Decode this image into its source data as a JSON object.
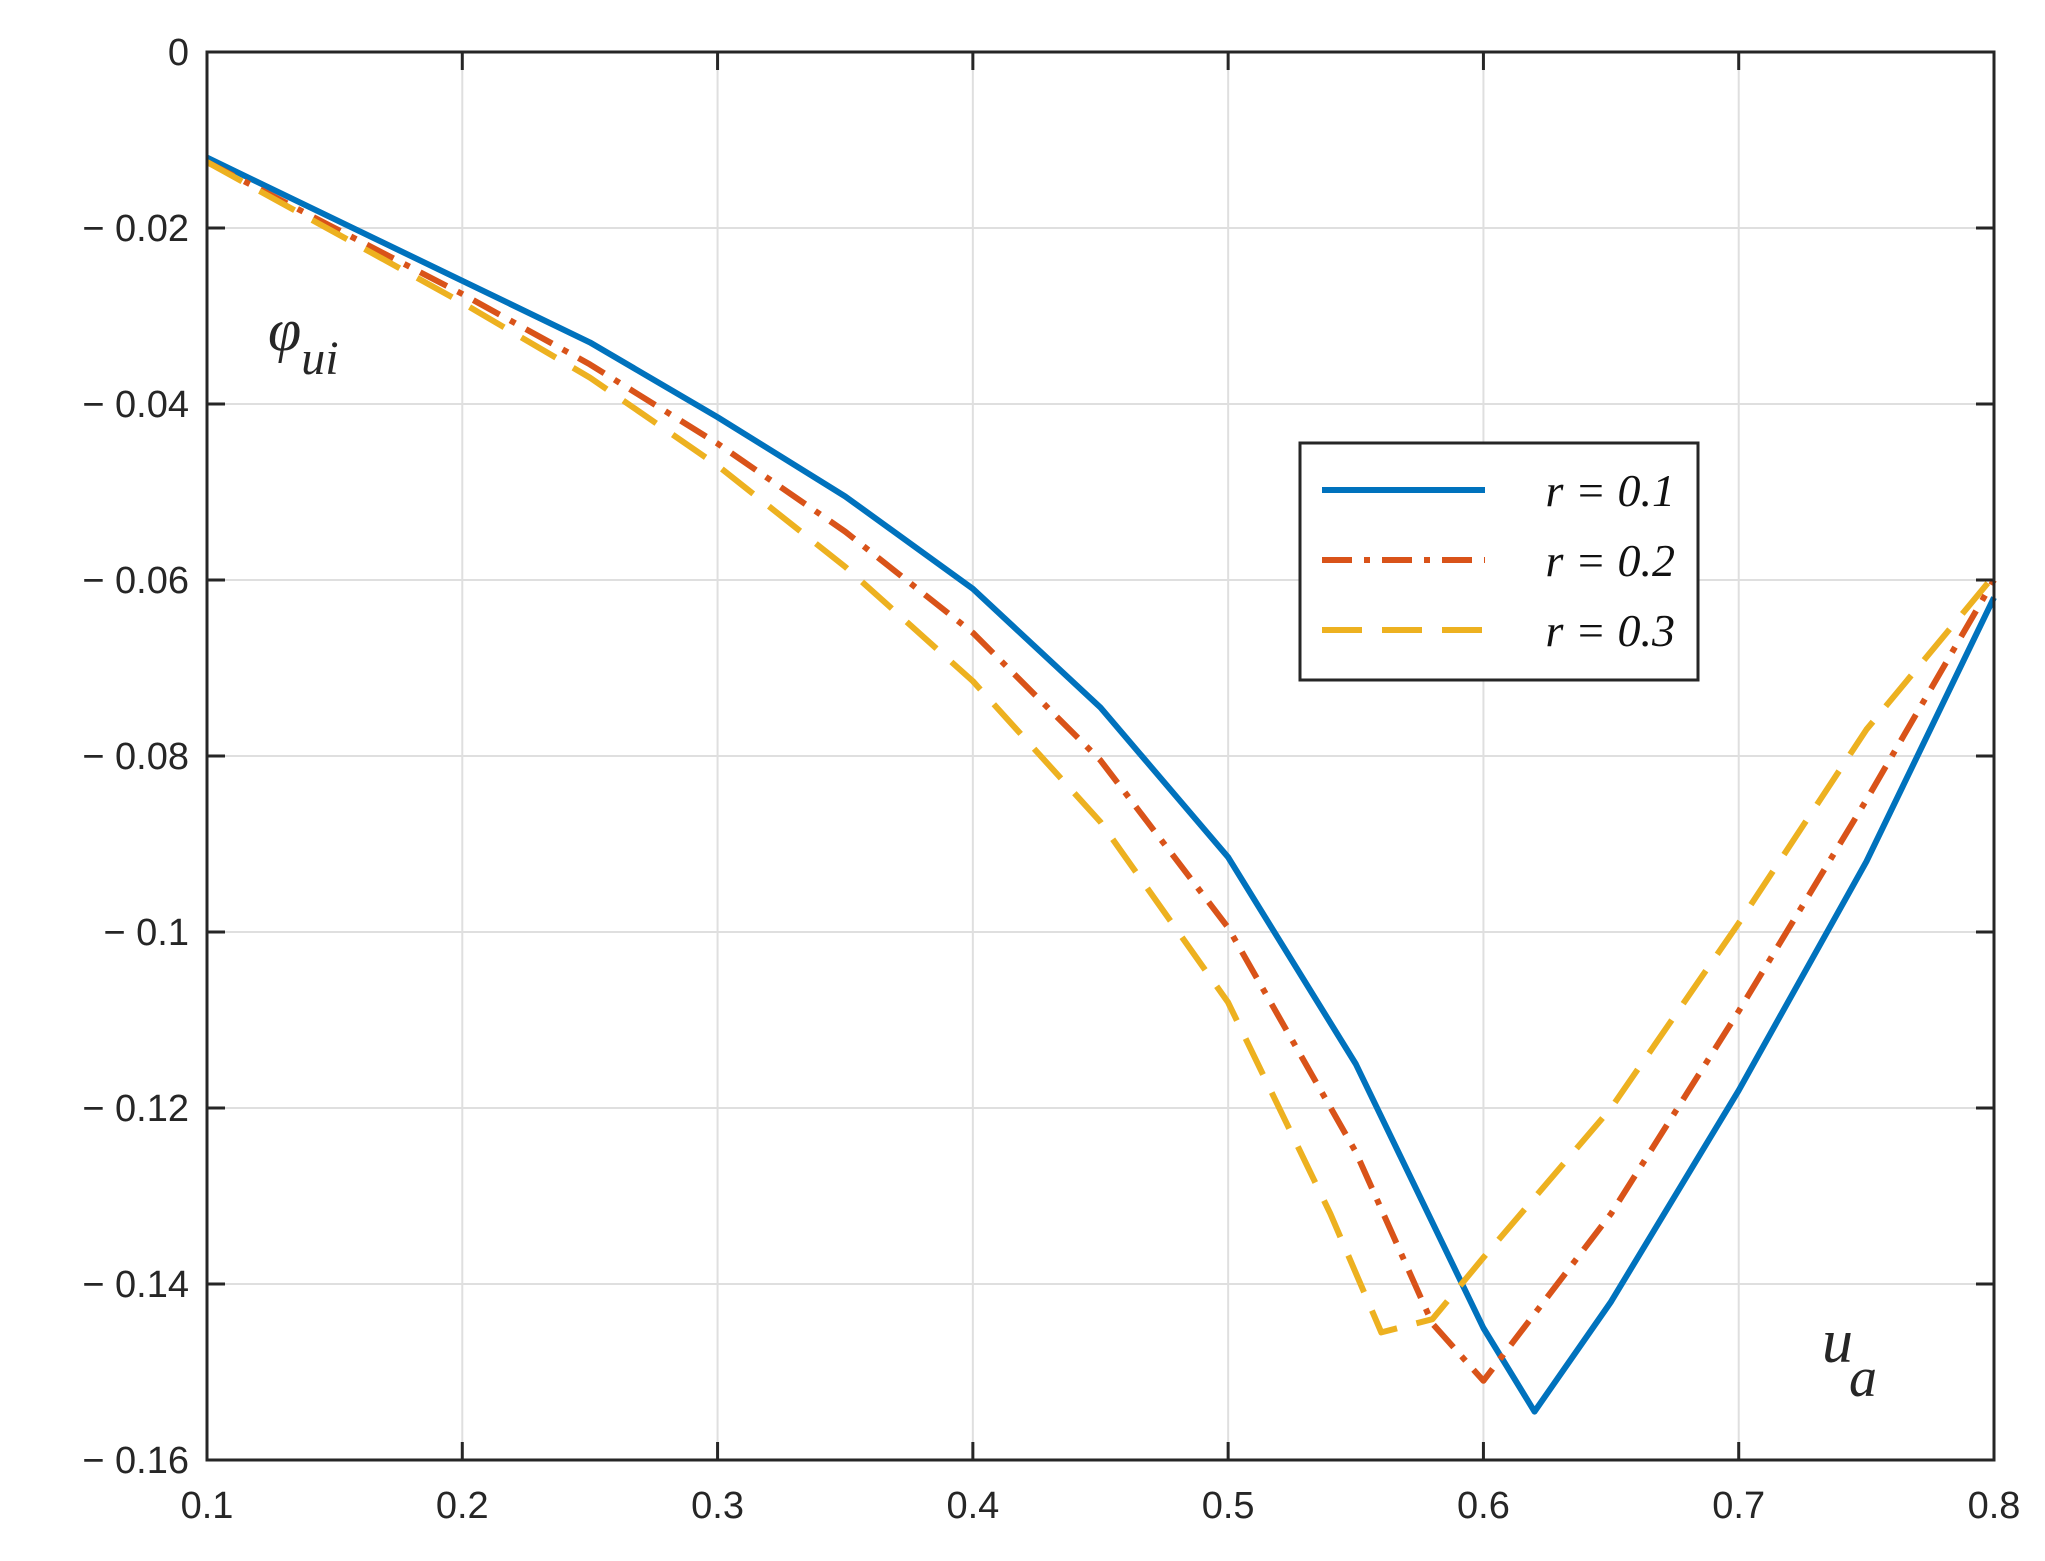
{
  "chart_data": {
    "type": "line",
    "title": "",
    "xlabel": "u",
    "xlabel_sub": "a",
    "ylabel": "φ",
    "ylabel_sub": "ui",
    "xlim": [
      0.1,
      0.8
    ],
    "ylim": [
      -0.16,
      0
    ],
    "xticks": [
      0.1,
      0.2,
      0.3,
      0.4,
      0.5,
      0.6,
      0.7,
      0.8
    ],
    "xtick_labels": [
      "0.1",
      "0.2",
      "0.3",
      "0.4",
      "0.5",
      "0.6",
      "0.7",
      "0.8"
    ],
    "yticks": [
      0,
      -0.02,
      -0.04,
      -0.06,
      -0.08,
      -0.1,
      -0.12,
      -0.14,
      -0.16
    ],
    "ytick_labels": [
      "0",
      "− 0.02",
      "− 0.04",
      "− 0.06",
      "− 0.08",
      "− 0.1",
      "− 0.12",
      "− 0.14",
      "− 0.16"
    ],
    "grid": true,
    "legend_position": "center-right",
    "series": [
      {
        "name": "r = 0.1",
        "color": "#0072BD",
        "style": "solid",
        "x": [
          0.1,
          0.15,
          0.2,
          0.25,
          0.3,
          0.35,
          0.4,
          0.45,
          0.5,
          0.55,
          0.6,
          0.62,
          0.65,
          0.7,
          0.75,
          0.8
        ],
        "y": [
          -0.012,
          -0.019,
          -0.026,
          -0.033,
          -0.0415,
          -0.0505,
          -0.061,
          -0.0745,
          -0.0915,
          -0.115,
          -0.145,
          -0.1545,
          -0.142,
          -0.118,
          -0.092,
          -0.062
        ]
      },
      {
        "name": "r = 0.2",
        "color": "#D95319",
        "style": "dashdot",
        "x": [
          0.1,
          0.15,
          0.2,
          0.25,
          0.3,
          0.35,
          0.4,
          0.45,
          0.5,
          0.55,
          0.58,
          0.6,
          0.65,
          0.7,
          0.75,
          0.8
        ],
        "y": [
          -0.0125,
          -0.02,
          -0.0275,
          -0.0355,
          -0.0445,
          -0.0545,
          -0.066,
          -0.0805,
          -0.0995,
          -0.125,
          -0.1445,
          -0.151,
          -0.132,
          -0.109,
          -0.085,
          -0.06
        ]
      },
      {
        "name": "r = 0.3",
        "color": "#EDB120",
        "style": "dashed",
        "x": [
          0.1,
          0.15,
          0.2,
          0.25,
          0.3,
          0.35,
          0.4,
          0.45,
          0.5,
          0.54,
          0.56,
          0.58,
          0.6,
          0.65,
          0.7,
          0.75,
          0.8
        ],
        "y": [
          -0.0125,
          -0.0205,
          -0.0285,
          -0.037,
          -0.047,
          -0.0585,
          -0.0715,
          -0.0875,
          -0.108,
          -0.132,
          -0.1455,
          -0.144,
          -0.137,
          -0.12,
          -0.099,
          -0.077,
          -0.0595
        ]
      }
    ]
  }
}
